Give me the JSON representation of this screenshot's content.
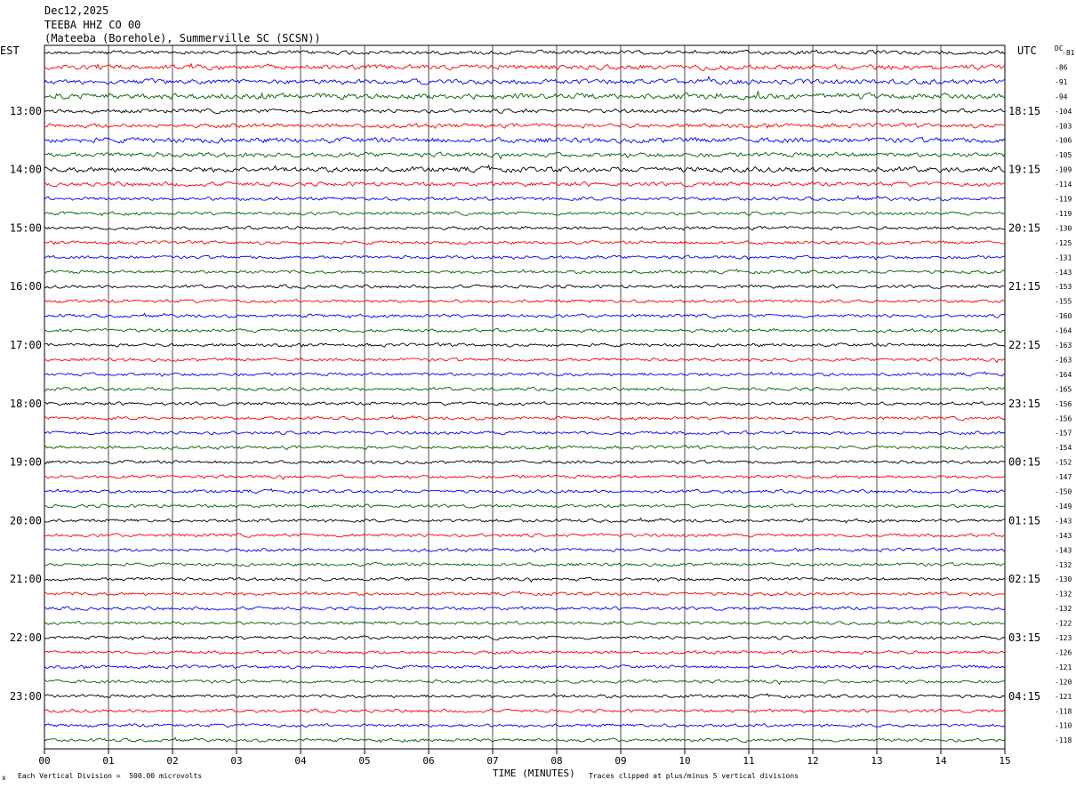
{
  "header": {
    "date": "Dec12,2025",
    "channel": "TEEBA HHZ CO 00",
    "station": "(Mateeba (Borehole), Summerville SC (SCSN))"
  },
  "chart_data": {
    "type": "line",
    "title": "TEEBA HHZ CO 00",
    "left_timezone": "EST",
    "right_timezone": "UTC",
    "dc_label": "DC",
    "xlabel": "TIME (MINUTES)",
    "xlim": [
      0,
      15
    ],
    "x_ticks": [
      "00",
      "01",
      "02",
      "03",
      "04",
      "05",
      "06",
      "07",
      "08",
      "09",
      "10",
      "11",
      "12",
      "13",
      "14",
      "15"
    ],
    "left_hour_labels": [
      "13:00",
      "14:00",
      "15:00",
      "16:00",
      "17:00",
      "18:00",
      "19:00",
      "20:00",
      "21:00",
      "22:00",
      "23:00"
    ],
    "right_hour_labels": [
      "18:15",
      "19:15",
      "20:15",
      "21:15",
      "22:15",
      "23:15",
      "00:15",
      "01:15",
      "02:15",
      "03:15",
      "04:15"
    ],
    "trace_colors": [
      "#000000",
      "#ff0000",
      "#0000ff",
      "#006400"
    ],
    "first_trace_offset": 4,
    "dc_offsets": [
      -81,
      -86,
      -91,
      -94,
      -104,
      -103,
      -106,
      -105,
      -109,
      -114,
      -119,
      -119,
      -130,
      -125,
      -131,
      -143,
      -153,
      -155,
      -160,
      -164,
      -163,
      -163,
      -164,
      -165,
      -156,
      -156,
      -157,
      -154,
      -152,
      -147,
      -150,
      -149,
      -143,
      -143,
      -143,
      -132,
      -130,
      -132,
      -132,
      -122,
      -123,
      -126,
      -121,
      -120,
      -121,
      -118,
      -110,
      -118
    ],
    "trace_amplitude_relative": [
      1.2,
      1.5,
      1.5,
      1.7,
      1.2,
      1.3,
      1.6,
      1.4,
      1.6,
      1.3,
      1.1,
      1,
      1,
      1,
      1,
      1,
      1,
      1,
      1,
      1,
      1,
      1,
      1,
      1,
      1,
      1,
      1,
      1,
      1,
      1,
      1,
      1,
      1,
      1,
      1,
      1,
      1,
      1,
      1,
      1,
      1,
      1,
      1,
      1,
      1,
      1,
      1,
      1
    ],
    "footer_left": "Each Vertical Division =  500.00 microvolts",
    "footer_right": "Traces clipped at plus/minus 5 vertical divisions",
    "corner_mark": "x"
  }
}
